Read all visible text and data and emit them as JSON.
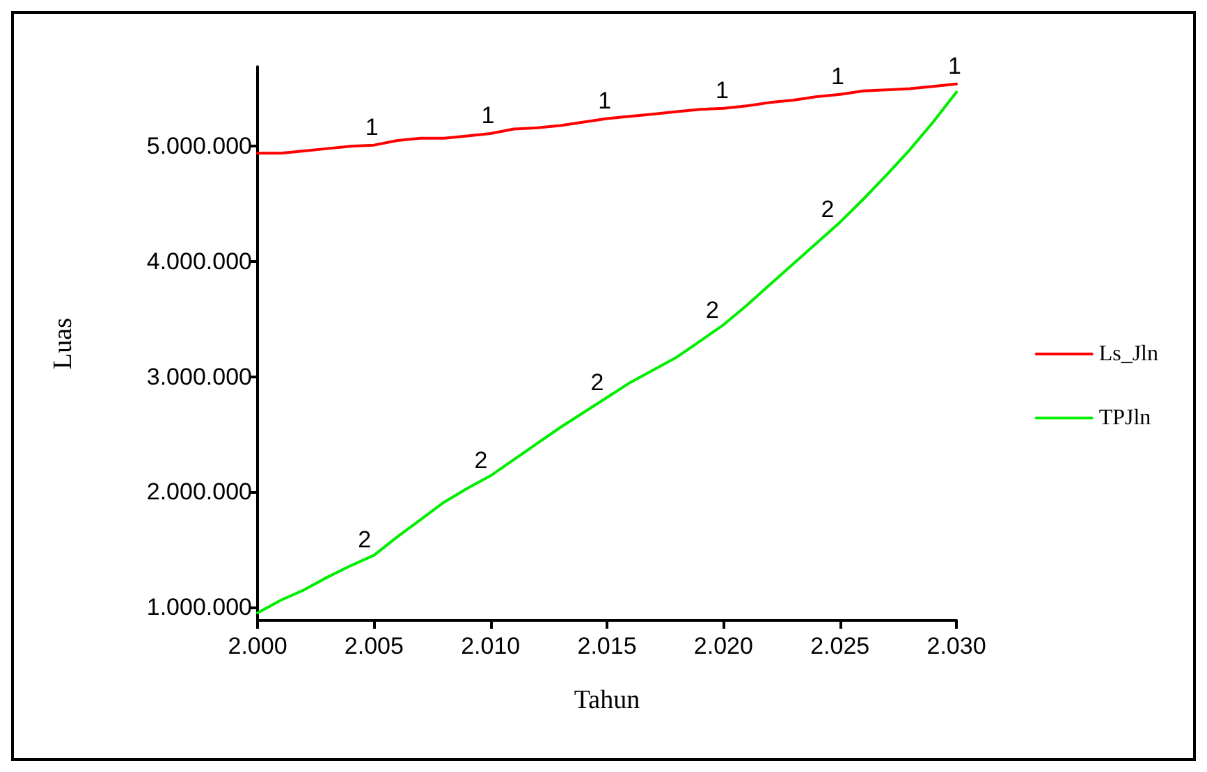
{
  "chart_data": {
    "type": "line",
    "xlabel": "Tahun",
    "ylabel": "Luas",
    "x": [
      2000,
      2001,
      2002,
      2003,
      2004,
      2005,
      2006,
      2007,
      2008,
      2009,
      2010,
      2011,
      2012,
      2013,
      2014,
      2015,
      2016,
      2017,
      2018,
      2019,
      2020,
      2021,
      2022,
      2023,
      2024,
      2025,
      2026,
      2027,
      2028,
      2029,
      2030
    ],
    "series": [
      {
        "name": "Ls_Jln",
        "color": "#ff0000",
        "values": [
          4940000,
          4940000,
          4960000,
          4980000,
          5000000,
          5010000,
          5050000,
          5070000,
          5070000,
          5090000,
          5110000,
          5150000,
          5160000,
          5180000,
          5210000,
          5240000,
          5260000,
          5280000,
          5300000,
          5320000,
          5330000,
          5350000,
          5380000,
          5400000,
          5430000,
          5450000,
          5480000,
          5490000,
          5500000,
          5520000,
          5540000
        ]
      },
      {
        "name": "TPJln",
        "color": "#00ee00",
        "values": [
          950000,
          1060000,
          1150000,
          1260000,
          1360000,
          1450000,
          1610000,
          1760000,
          1910000,
          2030000,
          2140000,
          2280000,
          2420000,
          2560000,
          2690000,
          2820000,
          2950000,
          3060000,
          3170000,
          3310000,
          3450000,
          3620000,
          3800000,
          3980000,
          4160000,
          4340000,
          4540000,
          4750000,
          4970000,
          5210000,
          5470000
        ]
      }
    ],
    "annotations": [
      {
        "text": "1",
        "x": 2005,
        "y": 5010000
      },
      {
        "text": "1",
        "x": 2010,
        "y": 5110000
      },
      {
        "text": "1",
        "x": 2015,
        "y": 5240000
      },
      {
        "text": "1",
        "x": 2020,
        "y": 5330000
      },
      {
        "text": "1",
        "x": 2025,
        "y": 5450000
      },
      {
        "text": "1",
        "x": 2030,
        "y": 5540000
      },
      {
        "text": "2",
        "x": 2005,
        "y": 1450000
      },
      {
        "text": "2",
        "x": 2010,
        "y": 2140000
      },
      {
        "text": "2",
        "x": 2015,
        "y": 2820000
      },
      {
        "text": "2",
        "x": 2020,
        "y": 3450000
      },
      {
        "text": "2",
        "x": 2025,
        "y": 4340000
      }
    ],
    "xlim": [
      2000,
      2030
    ],
    "xticks": [
      {
        "value": 2000,
        "label": "2.000"
      },
      {
        "value": 2005,
        "label": "2.005"
      },
      {
        "value": 2010,
        "label": "2.010"
      },
      {
        "value": 2015,
        "label": "2.015"
      },
      {
        "value": 2020,
        "label": "2.020"
      },
      {
        "value": 2025,
        "label": "2.025"
      },
      {
        "value": 2030,
        "label": "2.030"
      }
    ],
    "ylim": [
      885000,
      5690000
    ],
    "yticks": [
      {
        "value": 1000000,
        "label": "1.000.000"
      },
      {
        "value": 2000000,
        "label": "2.000.000"
      },
      {
        "value": 3000000,
        "label": "3.000.000"
      },
      {
        "value": 4000000,
        "label": "4.000.000"
      },
      {
        "value": 5000000,
        "label": "5.000.000"
      }
    ],
    "grid": false,
    "legend": "right",
    "marker": "none",
    "line_style": "solid"
  }
}
